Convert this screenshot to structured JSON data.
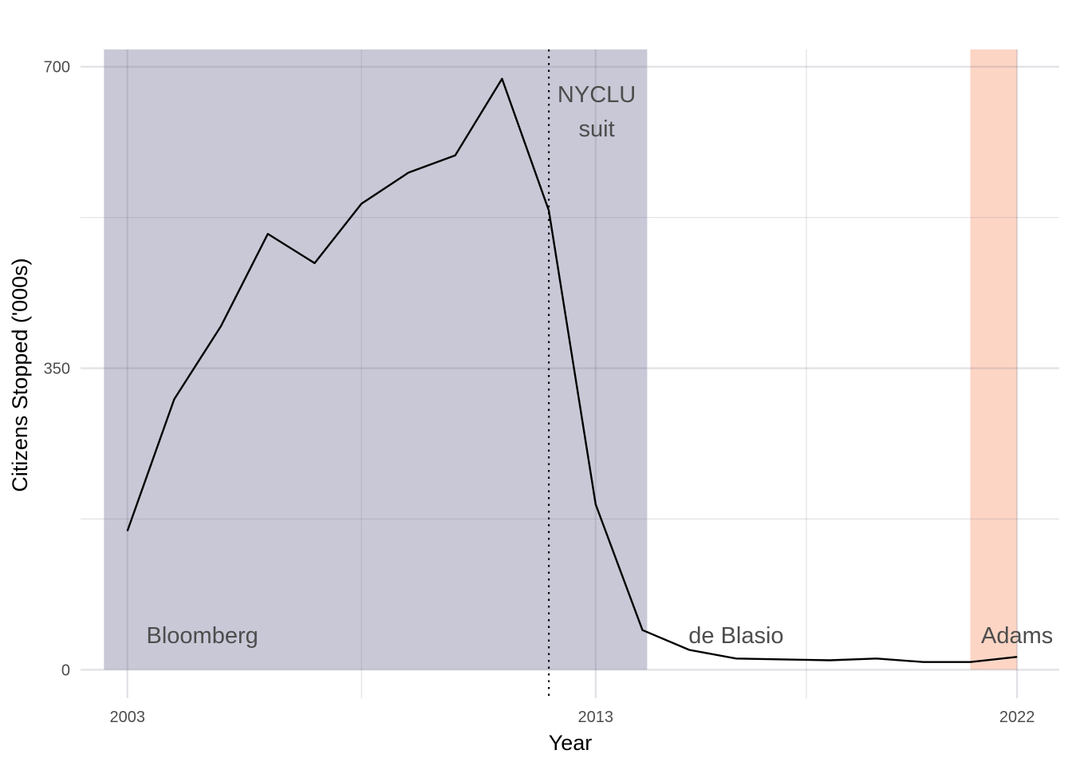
{
  "chart_data": {
    "type": "line",
    "title": "",
    "xlabel": "Year",
    "ylabel": "Citizens Stopped ('000s)",
    "xlim": [
      2002,
      2022.9
    ],
    "ylim": [
      -33,
      720
    ],
    "x_ticks": [
      2003,
      2013,
      2022
    ],
    "x_minor_ticks": [
      2008,
      2017.5
    ],
    "y_ticks": [
      0,
      350,
      700
    ],
    "y_minor_ticks": [
      175,
      525
    ],
    "grid": true,
    "legend": "none",
    "series": [
      {
        "x": [
          2003,
          2004,
          2005,
          2006,
          2007,
          2008,
          2009,
          2010,
          2011,
          2012,
          2013,
          2014,
          2015,
          2016,
          2017,
          2018,
          2019,
          2020,
          2021,
          2022
        ],
        "values": [
          161,
          314,
          399,
          506,
          472,
          541,
          577,
          597,
          686,
          533,
          192,
          46,
          23,
          13,
          12,
          11,
          13,
          9,
          9,
          15
        ],
        "color": "#000000"
      }
    ],
    "periods": [
      {
        "label": "Bloomberg",
        "start": 2002,
        "end": 2014,
        "color": "#c8c8d7"
      },
      {
        "label": "de Blasio",
        "start": 2014,
        "end": 2021,
        "color": "#ffffff"
      },
      {
        "label": "Adams",
        "start": 2021,
        "end": 2022,
        "color": "#fdd5c4"
      }
    ],
    "events": [
      {
        "x": 2012,
        "label_lines": [
          "NYCLU",
          "suit"
        ],
        "style": "dotted"
      }
    ]
  }
}
